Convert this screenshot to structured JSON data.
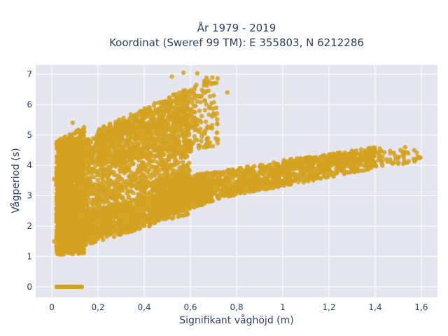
{
  "chart_data": {
    "type": "scatter",
    "title": [
      "År 1979 - 2019",
      "Koordinat (Sweref 99 TM): E 355803, N 6212286"
    ],
    "xlabel": "Signifikant våghöjd (m)",
    "ylabel": "Vågperiod (s)",
    "xlim": [
      -0.07,
      1.67
    ],
    "ylim": [
      -0.35,
      7.3
    ],
    "xticks": [
      0,
      0.2,
      0.4,
      0.6,
      0.8,
      1,
      1.2,
      1.4,
      1.6
    ],
    "xtick_labels": [
      "0",
      "0,2",
      "0,4",
      "0,6",
      "0,8",
      "1",
      "1,2",
      "1,4",
      "1,6"
    ],
    "yticks": [
      0,
      1,
      2,
      3,
      4,
      5,
      6,
      7
    ],
    "ytick_labels": [
      "0",
      "1",
      "2",
      "3",
      "4",
      "5",
      "6",
      "7"
    ],
    "grid": true,
    "legend": "none",
    "colors": {
      "marker": "#d4a220",
      "plot_bg": "#e5e5ef",
      "grid": "#ffffff"
    },
    "series": [
      {
        "regions": [
          {
            "kind": "band",
            "x": [
              0.03,
              0.6
            ],
            "y_low": [
              1.1,
              2.4
            ],
            "y_high": [
              4.4,
              6.6
            ],
            "n": 2600
          },
          {
            "kind": "band",
            "x": [
              0.05,
              0.7
            ],
            "y_low": [
              1.3,
              2.8
            ],
            "y_high": [
              2.2,
              3.6
            ],
            "n": 900
          },
          {
            "kind": "band",
            "x": [
              0.45,
              1.4
            ],
            "y_low": [
              2.5,
              3.9
            ],
            "y_high": [
              3.5,
              4.6
            ],
            "n": 1400
          },
          {
            "kind": "band",
            "x": [
              1.0,
              1.6
            ],
            "y_low": [
              3.7,
              4.1
            ],
            "y_high": [
              4.2,
              4.6
            ],
            "n": 200
          },
          {
            "kind": "band",
            "x": [
              0.02,
              0.14
            ],
            "y_low": [
              1.05,
              1.1
            ],
            "y_high": [
              4.8,
              5.3
            ],
            "n": 1200
          },
          {
            "kind": "band",
            "x": [
              0.2,
              0.72
            ],
            "y_low": [
              4.0,
              4.6
            ],
            "y_high": [
              5.2,
              7.0
            ],
            "n": 600
          }
        ],
        "zero_period_line": {
          "x": [
            0.02,
            0.13
          ],
          "y": 0
        },
        "outliers": [
          {
            "x": 0.57,
            "y": 7.05
          },
          {
            "x": 0.63,
            "y": 7.03
          },
          {
            "x": 0.67,
            "y": 6.88
          },
          {
            "x": 0.52,
            "y": 6.92
          },
          {
            "x": 0.76,
            "y": 6.4
          },
          {
            "x": 1.39,
            "y": 4.58
          },
          {
            "x": 1.42,
            "y": 4.55
          },
          {
            "x": 1.51,
            "y": 4.5
          },
          {
            "x": 1.53,
            "y": 4.6
          },
          {
            "x": 1.58,
            "y": 4.42
          },
          {
            "x": 1.5,
            "y": 4.25
          },
          {
            "x": 0.01,
            "y": 3.55
          },
          {
            "x": 0.01,
            "y": 1.5
          },
          {
            "x": 0.14,
            "y": 5.1
          },
          {
            "x": 0.09,
            "y": 5.4
          }
        ]
      }
    ]
  }
}
